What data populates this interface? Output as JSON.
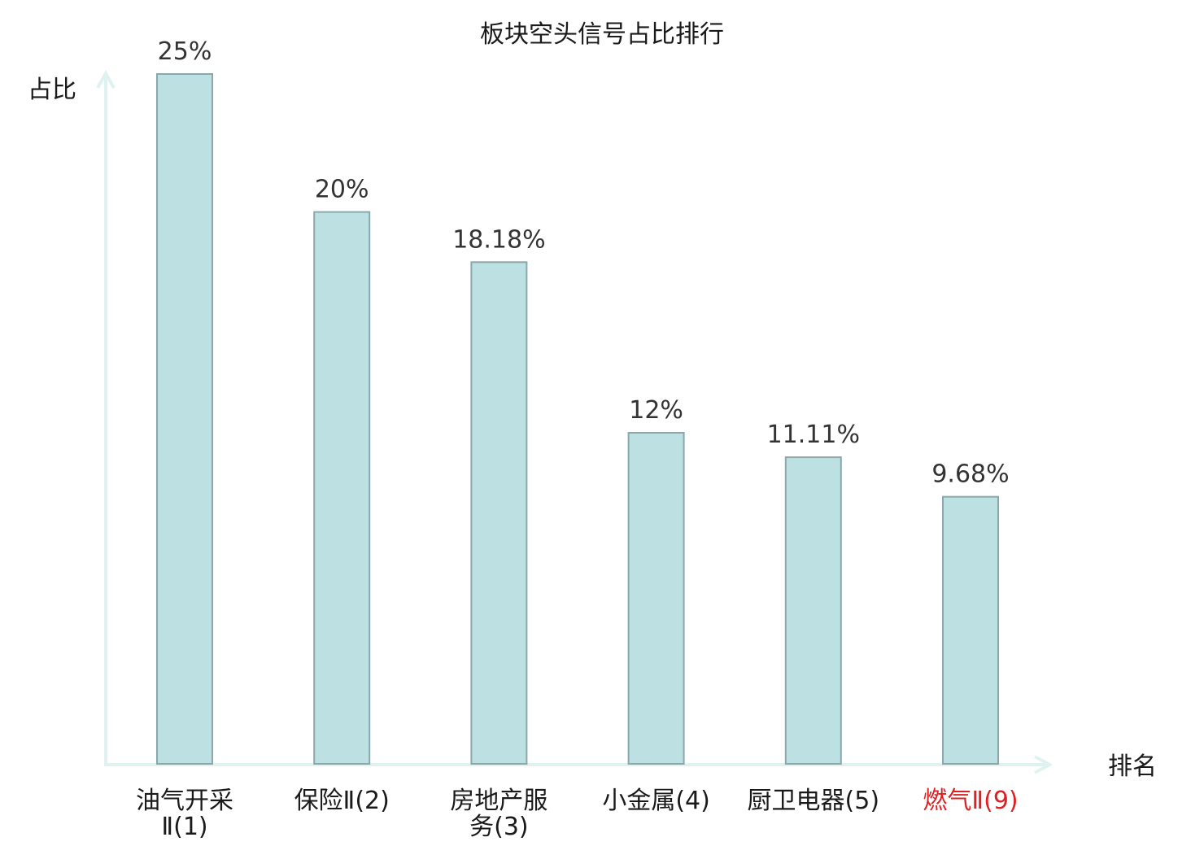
{
  "chart_data": {
    "type": "bar",
    "title": "板块空头信号占比排行",
    "ylabel": "占比",
    "xlabel": "排名",
    "ylim": [
      0,
      25
    ],
    "grid": false,
    "categories": [
      {
        "lines": [
          "油气开采",
          "Ⅱ(1)"
        ],
        "highlight": false
      },
      {
        "lines": [
          "保险Ⅱ(2)"
        ],
        "highlight": false
      },
      {
        "lines": [
          "房地产服",
          "务(3)"
        ],
        "highlight": false
      },
      {
        "lines": [
          "小金属(4)"
        ],
        "highlight": false
      },
      {
        "lines": [
          "厨卫电器(5)"
        ],
        "highlight": false
      },
      {
        "lines": [
          "燃气Ⅱ(9)"
        ],
        "highlight": true
      }
    ],
    "values": [
      25,
      20,
      18.18,
      12,
      11.11,
      9.68
    ],
    "value_labels": [
      "25%",
      "20%",
      "18.18%",
      "12%",
      "11.11%",
      "9.68%"
    ],
    "colors": {
      "bar_fill": "#bde0e3",
      "bar_stroke": "#8aa8ab",
      "axis": "#e0f2f0",
      "label": "#1a1a1a",
      "highlight": "#e02020"
    }
  }
}
